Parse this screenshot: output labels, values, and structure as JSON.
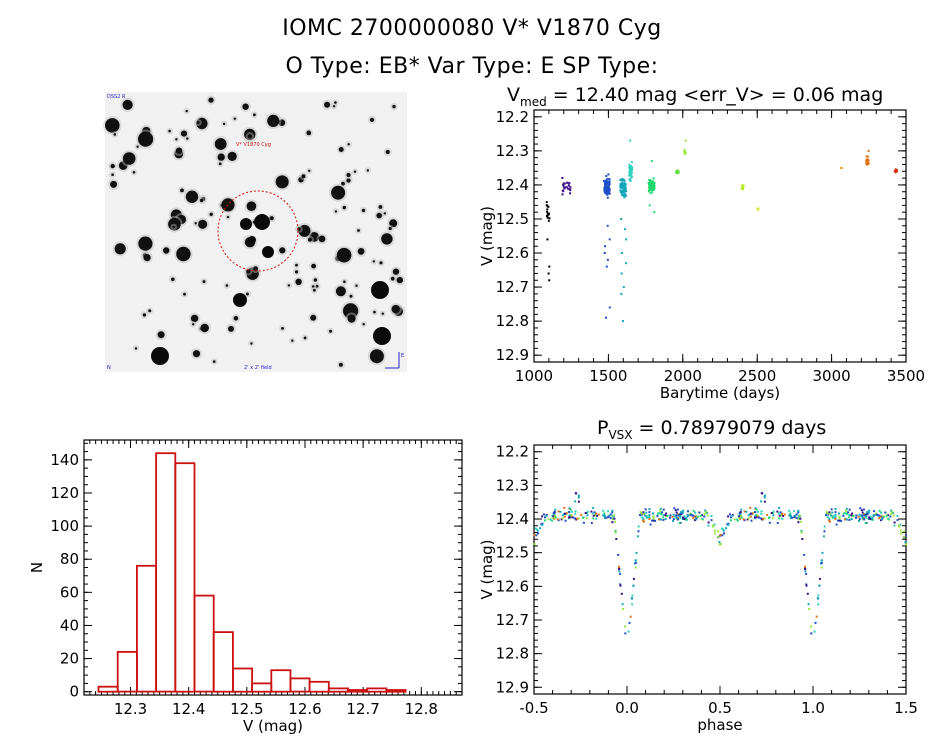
{
  "header": {
    "line1": "IOMC 2700000080    V* V1870 Cyg",
    "line2": "O Type: EB*   Var Type: E   SP Type:"
  },
  "image_panel": {
    "label_tl": "DSS2 R",
    "label_mid": "V* V1870 Cyg",
    "label_bl": "N",
    "label_bm": "2' x 2' field",
    "label_br": "E"
  },
  "chart_data": [
    {
      "id": "lightcurve",
      "type": "scatter",
      "title_prefix": "V",
      "title_sub": "med",
      "title_rest": " = 12.40 mag <err_V> = 0.06 mag",
      "xlabel": "Barytime (days)",
      "ylabel": "V (mag)",
      "xlim": [
        1000,
        3500
      ],
      "ylim": [
        12.92,
        12.18
      ],
      "xticks": [
        1000,
        1500,
        2000,
        2500,
        3000,
        3500
      ],
      "yticks": [
        12.2,
        12.3,
        12.4,
        12.5,
        12.6,
        12.7,
        12.8,
        12.9
      ],
      "groups": [
        {
          "t0": 1085,
          "t1": 1105,
          "center": 12.48,
          "spread": 0.06,
          "n": 14,
          "color": "#000000",
          "dips": [
            12.56,
            12.64,
            12.66,
            12.68
          ]
        },
        {
          "t0": 1190,
          "t1": 1250,
          "center": 12.4,
          "spread": 0.05,
          "n": 22,
          "color": "#3a0a8a",
          "dips": []
        },
        {
          "t0": 1470,
          "t1": 1510,
          "center": 12.41,
          "spread": 0.06,
          "n": 90,
          "color": "#1f4fc8",
          "dips": [
            12.52,
            12.56,
            12.58,
            12.6,
            12.62,
            12.64,
            12.76,
            12.79
          ]
        },
        {
          "t0": 1580,
          "t1": 1620,
          "center": 12.41,
          "spread": 0.06,
          "n": 80,
          "color": "#12a6b8",
          "dips": [
            12.5,
            12.53,
            12.56,
            12.6,
            12.63,
            12.66,
            12.7,
            12.72,
            12.8
          ]
        },
        {
          "t0": 1640,
          "t1": 1660,
          "center": 12.36,
          "spread": 0.05,
          "n": 40,
          "color": "#2fd0c0",
          "dips": [
            12.27
          ]
        },
        {
          "t0": 1770,
          "t1": 1810,
          "center": 12.4,
          "spread": 0.04,
          "n": 70,
          "color": "#22d870",
          "dips": [
            12.33,
            12.46,
            12.48
          ]
        },
        {
          "t0": 1955,
          "t1": 1975,
          "center": 12.36,
          "spread": 0.01,
          "n": 8,
          "color": "#5fe040",
          "dips": []
        },
        {
          "t0": 2010,
          "t1": 2020,
          "center": 12.3,
          "spread": 0.02,
          "n": 8,
          "color": "#96e83a",
          "dips": [
            12.27
          ]
        },
        {
          "t0": 2395,
          "t1": 2410,
          "center": 12.41,
          "spread": 0.02,
          "n": 10,
          "color": "#b8e82a",
          "dips": []
        },
        {
          "t0": 2500,
          "t1": 2510,
          "center": 12.47,
          "spread": 0.01,
          "n": 5,
          "color": "#d8e830",
          "dips": []
        },
        {
          "t0": 3060,
          "t1": 3070,
          "center": 12.35,
          "spread": 0.005,
          "n": 3,
          "color": "#e8a020",
          "dips": []
        },
        {
          "t0": 3230,
          "t1": 3250,
          "center": 12.33,
          "spread": 0.03,
          "n": 14,
          "color": "#e07010",
          "dips": [
            12.3
          ]
        },
        {
          "t0": 3425,
          "t1": 3440,
          "center": 12.36,
          "spread": 0.01,
          "n": 10,
          "color": "#d83010",
          "dips": []
        }
      ]
    },
    {
      "id": "histogram",
      "type": "bar",
      "xlabel": "V (mag)",
      "ylabel": "N",
      "xlim": [
        12.22,
        12.87
      ],
      "ylim": [
        -2,
        152
      ],
      "xticks": [
        12.3,
        12.4,
        12.5,
        12.6,
        12.7,
        12.8
      ],
      "yticks": [
        0,
        20,
        40,
        60,
        80,
        100,
        120,
        140
      ],
      "bin_start": 12.245,
      "bin_width": 0.033,
      "values": [
        3,
        24,
        76,
        144,
        138,
        58,
        36,
        14,
        5,
        13,
        8,
        6,
        2,
        1,
        2,
        1
      ],
      "bar_color": "#cc1111"
    },
    {
      "id": "phased",
      "type": "scatter",
      "title_prefix": "P",
      "title_sub": "VSX",
      "title_rest": " = 0.78979079 days",
      "xlabel": "phase",
      "ylabel": "V (mag)",
      "xlim": [
        -0.5,
        1.5
      ],
      "ylim": [
        12.92,
        12.18
      ],
      "xticks": [
        -0.5,
        0.0,
        0.5,
        1.0,
        1.5
      ],
      "xtick_labels": [
        "-0.5",
        "0.0",
        "0.5",
        "1.0",
        "1.5"
      ],
      "yticks": [
        12.2,
        12.3,
        12.4,
        12.5,
        12.6,
        12.7,
        12.8,
        12.9
      ],
      "period_days": 0.78979079,
      "base_mag": 12.39,
      "primary_depth": 0.4,
      "secondary_depth": 0.07
    }
  ]
}
